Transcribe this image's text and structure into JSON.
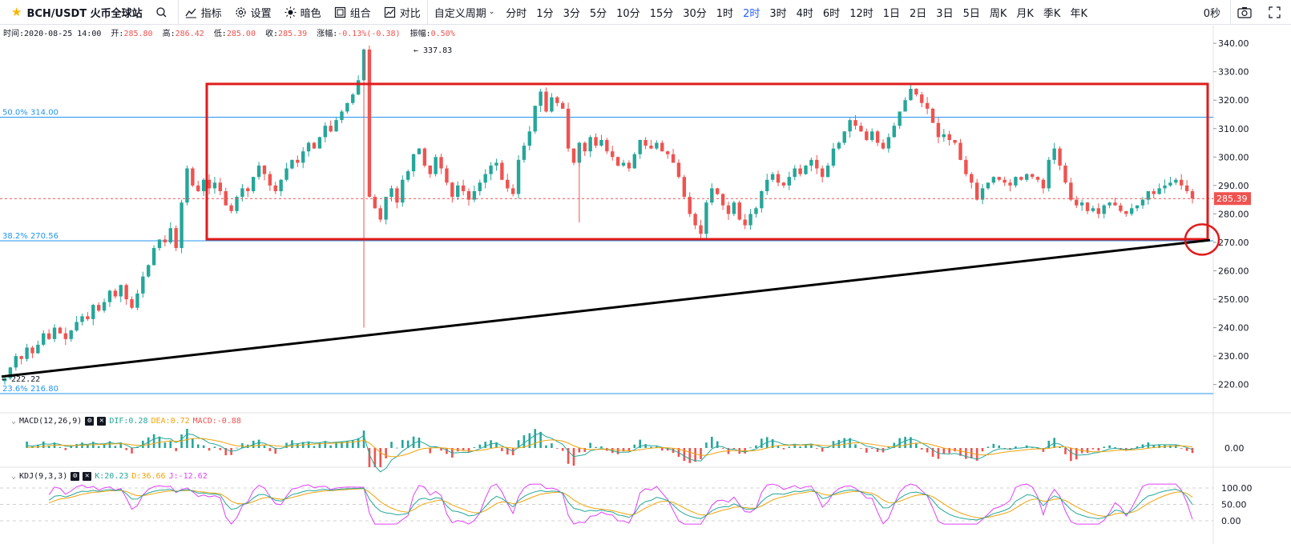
{
  "toolbar": {
    "symbol": "BCH/USDT 火币全球站",
    "indicators": "指标",
    "settings": "设置",
    "theme": "暗色",
    "combine": "组合",
    "compare": "对比",
    "custom_period": "自定义周期",
    "periods": [
      "分时",
      "1分",
      "3分",
      "5分",
      "10分",
      "15分",
      "30分",
      "1时",
      "2时",
      "3时",
      "4时",
      "6时",
      "12时",
      "1日",
      "2日",
      "3日",
      "5日",
      "周K",
      "月K",
      "季K",
      "年K"
    ],
    "active_period": "2时",
    "countdown": "0秒"
  },
  "info": {
    "time_label": "时间:",
    "time": "2020-08-25 14:00",
    "open_label": "开:",
    "open": "285.80",
    "high_label": "高:",
    "high": "286.42",
    "low_label": "低:",
    "low": "285.00",
    "close_label": "收:",
    "close": "285.39",
    "change_label": "涨幅:",
    "change": "-0.13%(-0.38)",
    "amplitude_label": "振幅:",
    "amplitude": "0.50%"
  },
  "price_axis": {
    "ticks": [
      "340.00",
      "330.00",
      "320.00",
      "310.00",
      "300.00",
      "290.00",
      "280.00",
      "270.00",
      "260.00",
      "250.00",
      "240.00",
      "230.00",
      "220.00"
    ],
    "current_price": "285.39"
  },
  "fib_levels": [
    {
      "label": "50.0% 314.00",
      "price": 314.0
    },
    {
      "label": "38.2% 270.56",
      "price": 270.56
    },
    {
      "label": "23.6% 216.80",
      "price": 216.8
    }
  ],
  "annotations": {
    "high_marker": "← 337.83",
    "low_marker": "← 222.22"
  },
  "macd": {
    "title": "MACD(12,26,9)",
    "dif": "DIF:0.28",
    "dea": "DEA:0.72",
    "macd": "MACD:-0.88",
    "axis_label": "0.00"
  },
  "kdj": {
    "title": "KDJ(9,3,3)",
    "k": "K:20.23",
    "d": "D:36.66",
    "j": "J:-12.62",
    "axis_labels": [
      "100.00",
      "50.00",
      "0.00"
    ]
  },
  "colors": {
    "up": "#26a69a",
    "down": "#ef5350",
    "accent": "#2962ff",
    "fib": "#2196f3",
    "box": "#e01b1b",
    "trendline": "#000000"
  },
  "chart_data": {
    "type": "candlestick",
    "title": "BCH/USDT",
    "ylim": [
      214,
      342
    ],
    "price_path": [
      222.2,
      226,
      230,
      229,
      233,
      231,
      234,
      238,
      236,
      240,
      238,
      236,
      239,
      242,
      244,
      243,
      248,
      246,
      249,
      253,
      251,
      255,
      250,
      247,
      252,
      258,
      262,
      268,
      271,
      270,
      275,
      268,
      284,
      296,
      290,
      288,
      292,
      289,
      291,
      288,
      283,
      281,
      286,
      289,
      288,
      293,
      297,
      294,
      290,
      288,
      292,
      296,
      299,
      298,
      302,
      305,
      303,
      307,
      311,
      309,
      313,
      316,
      319,
      322,
      327,
      337.8,
      286,
      282,
      278,
      286,
      289,
      284,
      292,
      295,
      301,
      303,
      297,
      294,
      300,
      296,
      291,
      286,
      290,
      288,
      285,
      288,
      291,
      294,
      297,
      298,
      292,
      289,
      287,
      299,
      304,
      309,
      318,
      323,
      316,
      321,
      319,
      317,
      303,
      298,
      305,
      302,
      307,
      304,
      306,
      302,
      300,
      297,
      298,
      296,
      301,
      306,
      304,
      303,
      305,
      302,
      301,
      298,
      293,
      286,
      280,
      276,
      273,
      284,
      289,
      287,
      283,
      280,
      284,
      278,
      276,
      280,
      282,
      288,
      292,
      294,
      291,
      290,
      293,
      296,
      294,
      297,
      299,
      296,
      293,
      297,
      303,
      305,
      309,
      313,
      311,
      309,
      306,
      309,
      305,
      303,
      307,
      311,
      316,
      320,
      324,
      322,
      319,
      317,
      312,
      307,
      308,
      306,
      305,
      299,
      294,
      291,
      285,
      289,
      291,
      293,
      292,
      291,
      290,
      293,
      292,
      294,
      293,
      292,
      289,
      299,
      303,
      297,
      291,
      285,
      283,
      284,
      281,
      282,
      280,
      283,
      284,
      283,
      281,
      280,
      282,
      283,
      285,
      288,
      287,
      289,
      290,
      291,
      292,
      290,
      288,
      285.4
    ]
  }
}
